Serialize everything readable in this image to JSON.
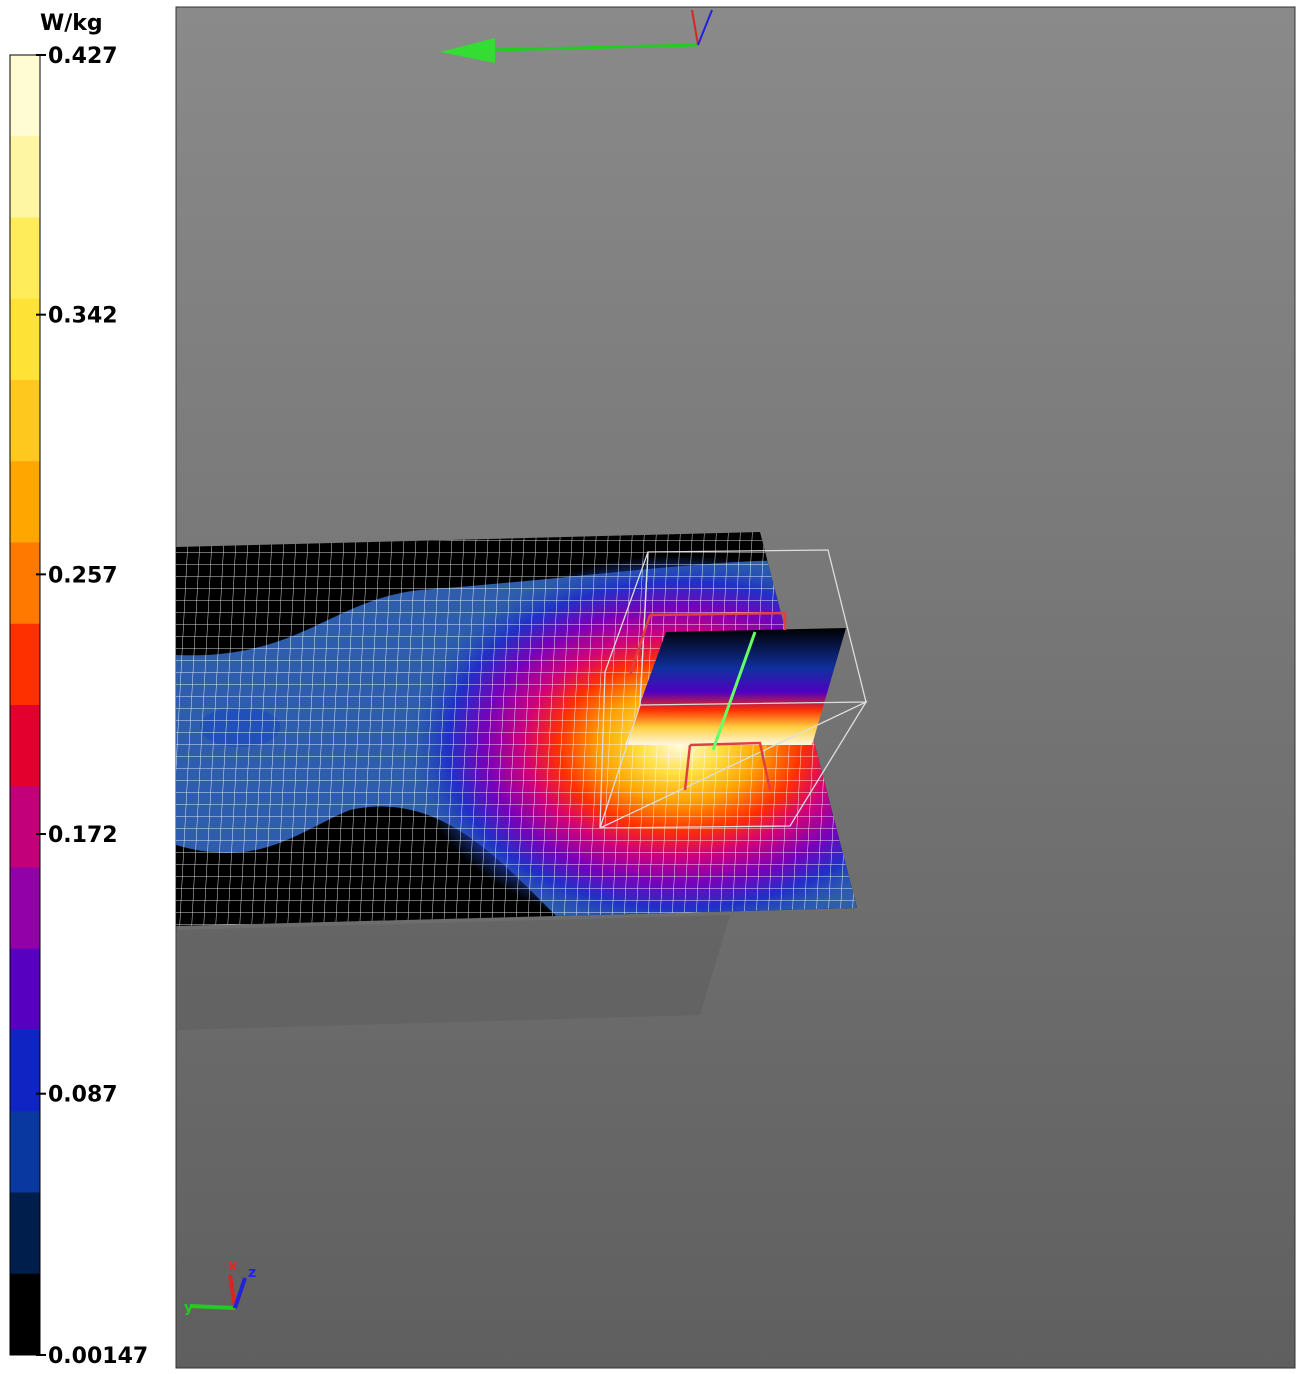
{
  "colorbar": {
    "unit": "W/kg",
    "ticks": [
      0.427,
      0.342,
      0.257,
      0.172,
      0.087,
      0.00147
    ],
    "colors": [
      "#fffbd2",
      "#fff6a4",
      "#ffec5a",
      "#ffe236",
      "#ffc81e",
      "#ffa600",
      "#ff7800",
      "#ff3000",
      "#e4002e",
      "#c2007a",
      "#9200a8",
      "#5800c0",
      "#1024c4",
      "#0838a0",
      "#001e4c",
      "#000000"
    ]
  },
  "triad_labels": [
    "x",
    "y",
    "z"
  ]
}
